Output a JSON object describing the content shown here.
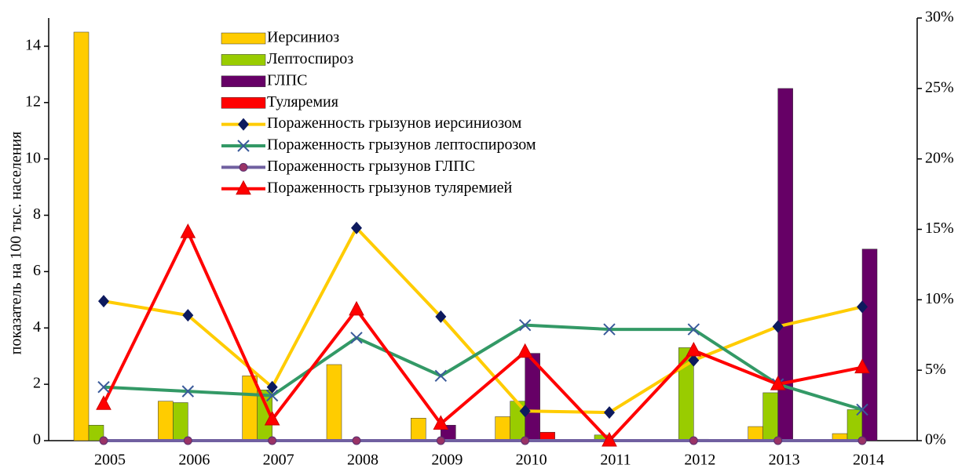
{
  "chart_data": {
    "type": "bar",
    "y_label": "показатель на 100 тыс. населения",
    "categories": [
      "2005",
      "2006",
      "2007",
      "2008",
      "2009",
      "2010",
      "2011",
      "2012",
      "2013",
      "2014"
    ],
    "ylim": [
      0,
      15
    ],
    "yticks": [
      0,
      2,
      4,
      6,
      8,
      10,
      12,
      14
    ],
    "y2lim": [
      0,
      30
    ],
    "y2ticks": [
      {
        "value": 0,
        "label": "0%"
      },
      {
        "value": 5,
        "label": "5%"
      },
      {
        "value": 10,
        "label": "10%"
      },
      {
        "value": 15,
        "label": "15%"
      },
      {
        "value": 20,
        "label": "20%"
      },
      {
        "value": 25,
        "label": "25%"
      },
      {
        "value": 30,
        "label": "30%"
      }
    ],
    "series": [
      {
        "name": "Иерсиниоз",
        "type": "bar",
        "color": "#ffcc00",
        "values": [
          14.5,
          1.4,
          2.3,
          2.7,
          0.8,
          0.85,
          0,
          0,
          0.5,
          0.25
        ]
      },
      {
        "name": "Лептоспироз",
        "type": "bar",
        "color": "#99cc00",
        "values": [
          0.55,
          1.35,
          1.8,
          0,
          0,
          1.4,
          0.2,
          3.3,
          1.7,
          1.1
        ]
      },
      {
        "name": "ГЛПС",
        "type": "bar",
        "color": "#660066",
        "values": [
          0,
          0,
          0,
          0,
          0.55,
          3.1,
          0,
          0.05,
          12.5,
          6.8
        ]
      },
      {
        "name": "Туляремия",
        "type": "bar",
        "color": "#ff0000",
        "values": [
          0,
          0,
          0,
          0,
          0,
          0.3,
          0,
          0,
          0,
          0
        ]
      },
      {
        "name": "Пораженность грызунов иерсиниозом",
        "type": "line",
        "axis": "y2",
        "color": "#ffcc00",
        "marker": "diamond",
        "marker_color": "#0d1a5e",
        "values": [
          9.9,
          8.9,
          3.8,
          15.1,
          8.8,
          2.1,
          2.0,
          5.7,
          8.1,
          9.5
        ]
      },
      {
        "name": "Пораженность грызунов лептоспирозом",
        "type": "line",
        "axis": "y2",
        "color": "#339966",
        "marker": "x",
        "marker_color": "#3a5a9a",
        "values": [
          3.8,
          3.5,
          3.2,
          7.3,
          4.6,
          8.2,
          7.9,
          7.9,
          4.0,
          2.2
        ]
      },
      {
        "name": "Пораженность грызунов ГЛПС",
        "type": "line",
        "axis": "y2",
        "color": "#7060a0",
        "marker": "circle",
        "marker_color": "#993366",
        "values": [
          0,
          0,
          0,
          0,
          0,
          0,
          0,
          0,
          0,
          0
        ]
      },
      {
        "name": "Пораженность грызунов туляремией",
        "type": "line",
        "axis": "y2",
        "color": "#ff0000",
        "marker": "triangle",
        "marker_color": "#ff0000",
        "values": [
          2.6,
          14.8,
          1.5,
          9.3,
          1.2,
          6.3,
          0,
          6.4,
          4.0,
          5.2
        ]
      }
    ]
  }
}
